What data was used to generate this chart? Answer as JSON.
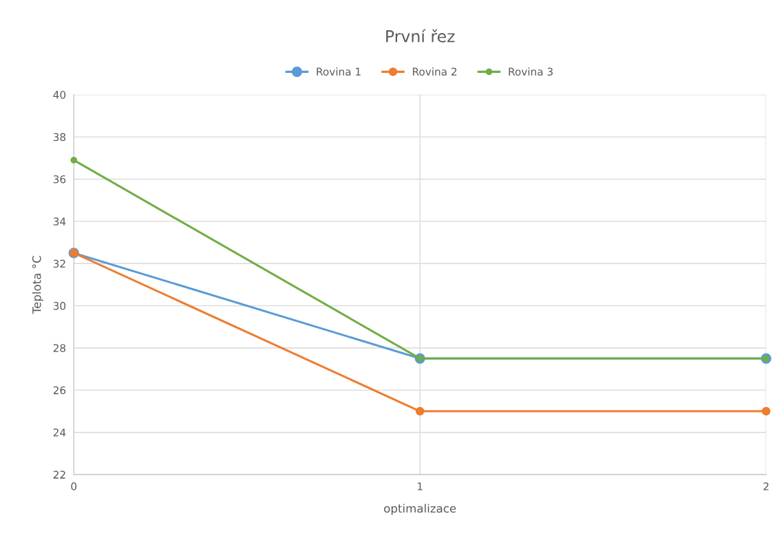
{
  "chart_data": {
    "type": "line",
    "title": "První řez",
    "xlabel": "optimalizace",
    "ylabel": "Teplota °C",
    "x": [
      0,
      1,
      2
    ],
    "series": [
      {
        "name": "Rovina 1",
        "color": "#5b9bd5",
        "values": [
          32.5,
          27.5,
          27.5
        ]
      },
      {
        "name": "Rovina 2",
        "color": "#ed7d31",
        "values": [
          32.5,
          25,
          25
        ]
      },
      {
        "name": "Rovina 3",
        "color": "#70ad47",
        "values": [
          36.9,
          27.5,
          27.5
        ]
      }
    ],
    "xlim": [
      0,
      2
    ],
    "xticks": [
      0,
      1,
      2
    ],
    "ylim": [
      22,
      40
    ],
    "yticks": [
      22,
      24,
      26,
      28,
      30,
      32,
      34,
      36,
      38,
      40
    ],
    "grid": true,
    "legend": "top",
    "marker": "circle",
    "line_style": "solid"
  }
}
